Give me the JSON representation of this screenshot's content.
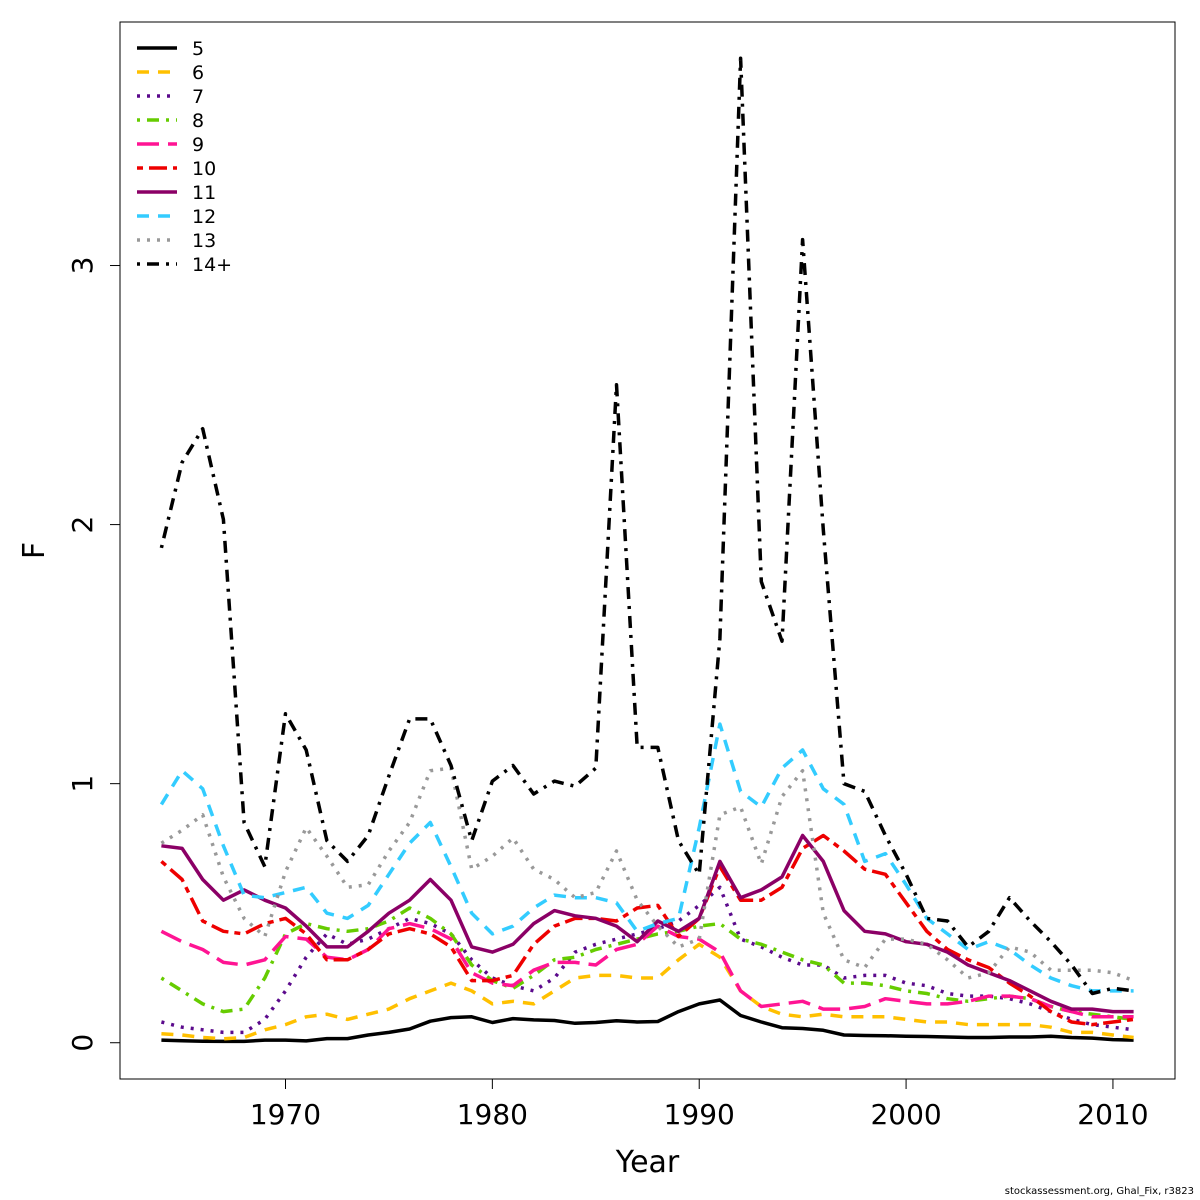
{
  "chart_data": {
    "type": "line",
    "xlabel": "Year",
    "ylabel": "F",
    "xlim": [
      1962,
      2013
    ],
    "ylim": [
      -0.14,
      3.94
    ],
    "xticks": [
      1970,
      1980,
      1990,
      2000,
      2010
    ],
    "yticks": [
      0,
      1,
      2,
      3
    ],
    "grid": false,
    "legend_position": "top-left",
    "x": [
      1964,
      1965,
      1966,
      1967,
      1968,
      1969,
      1970,
      1971,
      1972,
      1973,
      1974,
      1975,
      1976,
      1977,
      1978,
      1979,
      1980,
      1981,
      1982,
      1983,
      1984,
      1985,
      1986,
      1987,
      1988,
      1989,
      1990,
      1991,
      1992,
      1993,
      1994,
      1995,
      1996,
      1997,
      1998,
      1999,
      2000,
      2001,
      2002,
      2003,
      2004,
      2005,
      2006,
      2007,
      2008,
      2009,
      2010,
      2011
    ],
    "series": [
      {
        "name": "5",
        "color": "#000000",
        "dash": "solid",
        "values": [
          0.01,
          0.008,
          0.006,
          0.005,
          0.005,
          0.01,
          0.01,
          0.007,
          0.016,
          0.016,
          0.03,
          0.04,
          0.053,
          0.083,
          0.097,
          0.1,
          0.078,
          0.093,
          0.088,
          0.086,
          0.075,
          0.078,
          0.085,
          0.08,
          0.082,
          0.12,
          0.15,
          0.165,
          0.105,
          0.08,
          0.058,
          0.055,
          0.048,
          0.03,
          0.028,
          0.027,
          0.025,
          0.024,
          0.022,
          0.02,
          0.02,
          0.022,
          0.022,
          0.025,
          0.02,
          0.018,
          0.012,
          0.01
        ]
      },
      {
        "name": "6",
        "color": "#ffc000",
        "dash": "dashed",
        "values": [
          0.035,
          0.03,
          0.02,
          0.015,
          0.02,
          0.05,
          0.07,
          0.1,
          0.11,
          0.09,
          0.11,
          0.13,
          0.17,
          0.2,
          0.23,
          0.2,
          0.15,
          0.16,
          0.15,
          0.2,
          0.25,
          0.26,
          0.26,
          0.25,
          0.25,
          0.32,
          0.38,
          0.33,
          0.2,
          0.14,
          0.11,
          0.1,
          0.11,
          0.1,
          0.1,
          0.1,
          0.09,
          0.08,
          0.08,
          0.07,
          0.07,
          0.07,
          0.07,
          0.06,
          0.04,
          0.04,
          0.03,
          0.02
        ]
      },
      {
        "name": "7",
        "color": "#5b0a8c",
        "dash": "dotted",
        "values": [
          0.08,
          0.06,
          0.05,
          0.04,
          0.04,
          0.09,
          0.2,
          0.33,
          0.42,
          0.38,
          0.4,
          0.44,
          0.48,
          0.46,
          0.42,
          0.32,
          0.25,
          0.22,
          0.2,
          0.25,
          0.35,
          0.38,
          0.4,
          0.42,
          0.44,
          0.47,
          0.53,
          0.6,
          0.4,
          0.37,
          0.33,
          0.3,
          0.3,
          0.25,
          0.26,
          0.26,
          0.23,
          0.22,
          0.19,
          0.18,
          0.18,
          0.17,
          0.15,
          0.12,
          0.09,
          0.07,
          0.06,
          0.05
        ]
      },
      {
        "name": "8",
        "color": "#66cc00",
        "dash": "dotdash",
        "values": [
          0.25,
          0.2,
          0.15,
          0.12,
          0.13,
          0.25,
          0.42,
          0.46,
          0.44,
          0.43,
          0.44,
          0.47,
          0.52,
          0.48,
          0.42,
          0.3,
          0.24,
          0.21,
          0.26,
          0.32,
          0.33,
          0.36,
          0.38,
          0.4,
          0.42,
          0.43,
          0.45,
          0.46,
          0.4,
          0.38,
          0.35,
          0.32,
          0.3,
          0.23,
          0.23,
          0.22,
          0.2,
          0.19,
          0.17,
          0.16,
          0.17,
          0.18,
          0.17,
          0.14,
          0.12,
          0.11,
          0.1,
          0.09
        ]
      },
      {
        "name": "9",
        "color": "#ff1493",
        "dash": "longdash",
        "values": [
          0.43,
          0.39,
          0.36,
          0.31,
          0.3,
          0.32,
          0.41,
          0.4,
          0.33,
          0.32,
          0.36,
          0.44,
          0.46,
          0.44,
          0.4,
          0.27,
          0.23,
          0.22,
          0.28,
          0.31,
          0.31,
          0.3,
          0.36,
          0.38,
          0.45,
          0.41,
          0.4,
          0.35,
          0.2,
          0.14,
          0.15,
          0.16,
          0.13,
          0.13,
          0.14,
          0.17,
          0.16,
          0.15,
          0.15,
          0.16,
          0.18,
          0.18,
          0.17,
          0.14,
          0.12,
          0.1,
          0.1,
          0.1
        ]
      },
      {
        "name": "10",
        "color": "#ee0000",
        "dash": "twodash",
        "values": [
          0.7,
          0.63,
          0.47,
          0.43,
          0.42,
          0.46,
          0.48,
          0.42,
          0.32,
          0.32,
          0.36,
          0.42,
          0.44,
          0.42,
          0.37,
          0.24,
          0.24,
          0.26,
          0.38,
          0.45,
          0.48,
          0.48,
          0.47,
          0.52,
          0.53,
          0.41,
          0.48,
          0.68,
          0.55,
          0.55,
          0.6,
          0.75,
          0.8,
          0.74,
          0.67,
          0.65,
          0.54,
          0.43,
          0.36,
          0.32,
          0.29,
          0.23,
          0.18,
          0.12,
          0.08,
          0.07,
          0.08,
          0.09
        ]
      },
      {
        "name": "11",
        "color": "#8b0066",
        "dash": "solid",
        "values": [
          0.76,
          0.75,
          0.63,
          0.55,
          0.59,
          0.55,
          0.52,
          0.45,
          0.37,
          0.37,
          0.43,
          0.5,
          0.55,
          0.63,
          0.55,
          0.37,
          0.35,
          0.38,
          0.46,
          0.51,
          0.49,
          0.48,
          0.45,
          0.39,
          0.47,
          0.43,
          0.48,
          0.7,
          0.56,
          0.59,
          0.64,
          0.8,
          0.7,
          0.51,
          0.43,
          0.42,
          0.39,
          0.38,
          0.35,
          0.3,
          0.27,
          0.24,
          0.2,
          0.16,
          0.13,
          0.13,
          0.12,
          0.12
        ]
      },
      {
        "name": "12",
        "color": "#33ccff",
        "dash": "dashed",
        "values": [
          0.92,
          1.05,
          0.98,
          0.76,
          0.57,
          0.56,
          0.58,
          0.6,
          0.5,
          0.48,
          0.53,
          0.65,
          0.77,
          0.85,
          0.68,
          0.5,
          0.42,
          0.45,
          0.52,
          0.57,
          0.56,
          0.56,
          0.54,
          0.43,
          0.46,
          0.48,
          0.83,
          1.23,
          0.97,
          0.91,
          1.06,
          1.13,
          0.98,
          0.92,
          0.7,
          0.73,
          0.61,
          0.48,
          0.42,
          0.36,
          0.39,
          0.36,
          0.3,
          0.25,
          0.22,
          0.2,
          0.2,
          0.2
        ]
      },
      {
        "name": "13",
        "color": "#999999",
        "dash": "dotted",
        "values": [
          0.77,
          0.82,
          0.88,
          0.64,
          0.48,
          0.41,
          0.66,
          0.83,
          0.72,
          0.6,
          0.61,
          0.74,
          0.85,
          1.05,
          1.06,
          0.67,
          0.72,
          0.79,
          0.67,
          0.63,
          0.56,
          0.58,
          0.74,
          0.55,
          0.45,
          0.37,
          0.4,
          0.88,
          0.91,
          0.69,
          0.95,
          1.05,
          0.5,
          0.32,
          0.29,
          0.4,
          0.4,
          0.38,
          0.32,
          0.25,
          0.27,
          0.37,
          0.35,
          0.28,
          0.28,
          0.28,
          0.27,
          0.24
        ]
      },
      {
        "name": "14+",
        "color": "#000000",
        "dash": "dotdash",
        "values": [
          1.91,
          2.24,
          2.37,
          2.02,
          0.85,
          0.68,
          1.27,
          1.13,
          0.78,
          0.7,
          0.8,
          1.03,
          1.25,
          1.25,
          1.07,
          0.78,
          1.01,
          1.07,
          0.96,
          1.01,
          0.99,
          1.06,
          2.54,
          1.14,
          1.14,
          0.78,
          0.65,
          1.56,
          3.8,
          1.78,
          1.55,
          3.1,
          1.98,
          1.0,
          0.97,
          0.8,
          0.65,
          0.48,
          0.47,
          0.37,
          0.43,
          0.56,
          0.47,
          0.39,
          0.3,
          0.19,
          0.21,
          0.2
        ]
      }
    ]
  },
  "credit": "stockassessment.org, Ghal_Fix, r3823"
}
